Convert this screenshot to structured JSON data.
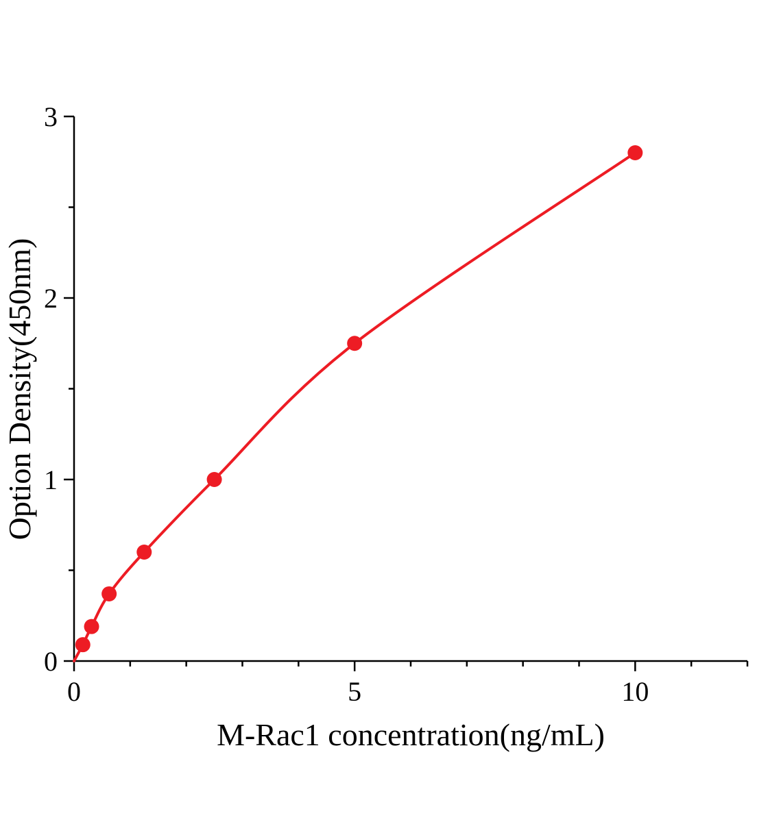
{
  "page": {
    "background": "#ffffff"
  },
  "chart_data": {
    "type": "line",
    "title": "",
    "xlabel": "M-Rac1 concentration(ng/mL)",
    "ylabel": "Option Density(450nm)",
    "x": [
      0.156,
      0.312,
      0.625,
      1.25,
      2.5,
      5,
      10
    ],
    "y": [
      0.09,
      0.19,
      0.37,
      0.6,
      1.0,
      1.75,
      2.8
    ],
    "curve_start_x": 0,
    "curve_start_y": 0,
    "xlim": [
      0,
      12
    ],
    "ylim": [
      0,
      3
    ],
    "x_major_ticks": [
      0,
      5,
      10
    ],
    "x_minor_step": 1,
    "y_major_ticks": [
      0,
      1,
      2,
      3
    ],
    "y_minor_step": 0.5,
    "line_color": "#ed1c24",
    "marker_color": "#ed1c24",
    "axis_color": "#000000",
    "marker_radius": 11,
    "line_width": 4,
    "grid": false,
    "legend": null
  }
}
